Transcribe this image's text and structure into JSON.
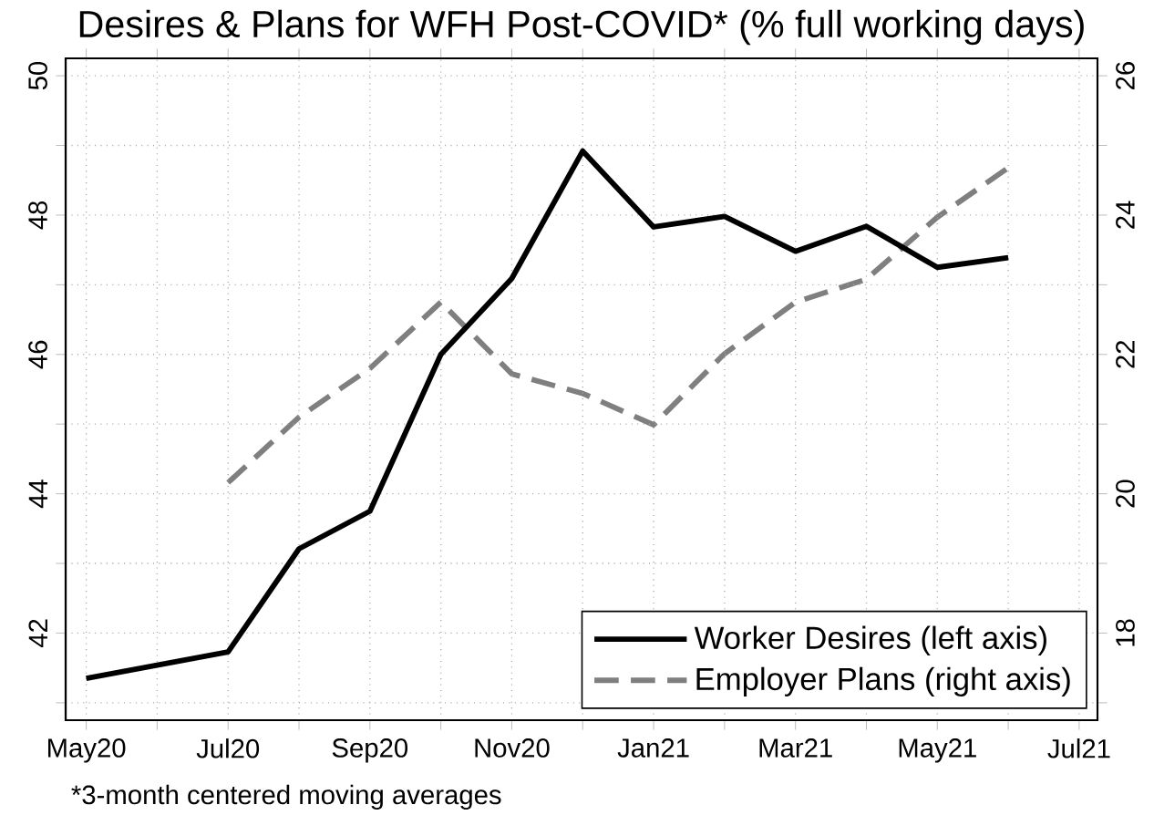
{
  "chart_data": {
    "type": "line",
    "title": "Desires & Plans for WFH Post-COVID* (% full working days)",
    "annotations": [
      "*3-month centered moving averages"
    ],
    "xlim": [
      "2020-04-23",
      "2021-07-09"
    ],
    "xticks": [
      {
        "value": "2020-05",
        "label": "May20"
      },
      {
        "value": "2020-06",
        "label": null
      },
      {
        "value": "2020-07",
        "label": "Jul20"
      },
      {
        "value": "2020-08",
        "label": null
      },
      {
        "value": "2020-09",
        "label": "Sep20"
      },
      {
        "value": "2020-10",
        "label": null
      },
      {
        "value": "2020-11",
        "label": "Nov20"
      },
      {
        "value": "2020-12",
        "label": null
      },
      {
        "value": "2021-01",
        "label": "Jan21"
      },
      {
        "value": "2021-02",
        "label": null
      },
      {
        "value": "2021-03",
        "label": "Mar21"
      },
      {
        "value": "2021-04",
        "label": null
      },
      {
        "value": "2021-05",
        "label": "May21"
      },
      {
        "value": "2021-06",
        "label": null
      },
      {
        "value": "2021-07",
        "label": "Jul21"
      }
    ],
    "ylim": [
      40.75,
      50.25
    ],
    "yticks": [
      {
        "value": 41,
        "label": null
      },
      42,
      {
        "value": 43,
        "label": null
      },
      44,
      {
        "value": 45,
        "label": null
      },
      46,
      {
        "value": 47,
        "label": null
      },
      48,
      {
        "value": 49,
        "label": null
      },
      50
    ],
    "y2lim": [
      16.75,
      26.25
    ],
    "y2ticks": [
      {
        "value": 17,
        "label": null
      },
      18,
      {
        "value": 19,
        "label": null
      },
      20,
      {
        "value": 21,
        "label": null
      },
      22,
      {
        "value": 23,
        "label": null
      },
      24,
      {
        "value": 25,
        "label": null
      },
      26
    ],
    "grid": true,
    "legend": "bottom right",
    "series": [
      {
        "name": "Worker Desires (left axis)",
        "color": "#000000",
        "line_style": "solid",
        "axis": "y",
        "x": [
          "2020-05",
          "2020-07",
          "2020-08",
          "2020-09",
          "2020-10",
          "2020-11",
          "2020-12",
          "2021-01",
          "2021-02",
          "2021-03",
          "2021-04",
          "2021-05",
          "2021-06"
        ],
        "values": [
          41.35,
          41.73,
          43.21,
          43.75,
          46.0,
          47.09,
          48.92,
          47.83,
          47.98,
          47.48,
          47.84,
          47.25,
          47.39
        ]
      },
      {
        "name": "Employer Plans (right axis)",
        "color": "#7f7f7f",
        "line_style": "dashed",
        "axis": "y2",
        "x": [
          "2020-07",
          "2020-08",
          "2020-09",
          "2020-10",
          "2020-11",
          "2020-12",
          "2021-01",
          "2021-02",
          "2021-03",
          "2021-04",
          "2021-05",
          "2021-06"
        ],
        "values": [
          20.16,
          21.1,
          21.8,
          22.75,
          21.72,
          21.44,
          20.99,
          22.01,
          22.75,
          23.08,
          23.97,
          24.68
        ]
      }
    ]
  }
}
